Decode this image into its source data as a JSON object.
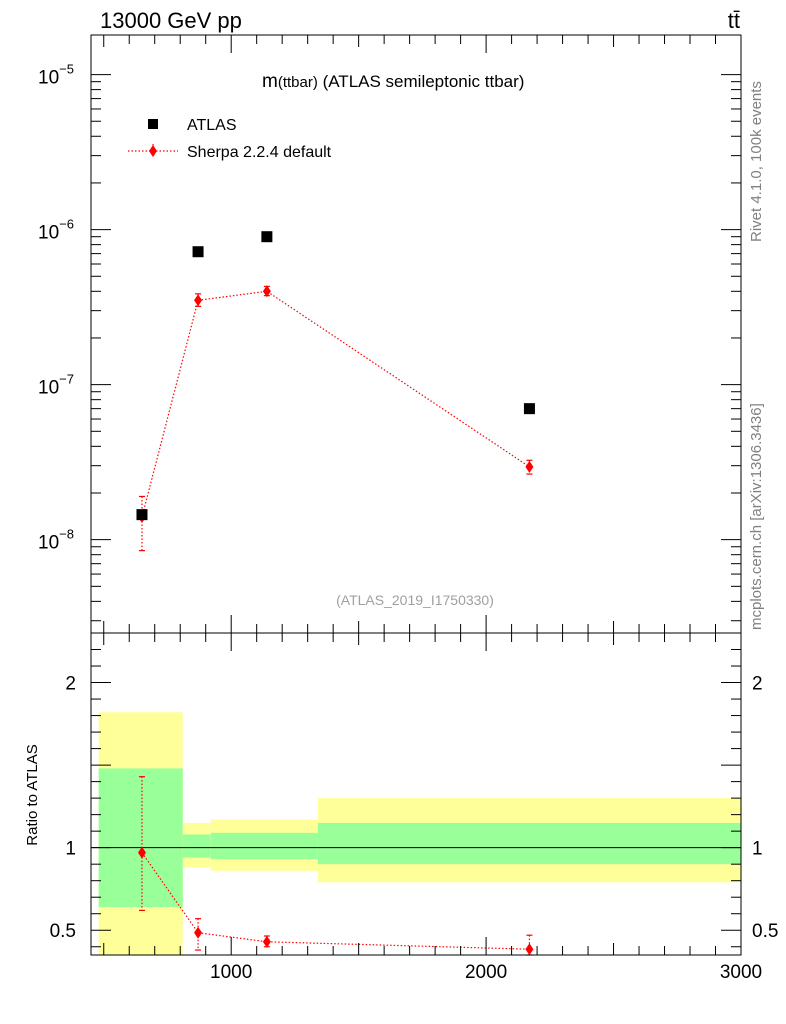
{
  "header": {
    "left": "13000 GeV pp",
    "right": "tt̄"
  },
  "side": {
    "rivet": "Rivet 4.1.0,  100k events",
    "mcplots": "mcplots.cern.ch [arXiv:1306.3436]"
  },
  "colors": {
    "data": "#000000",
    "mc": "#ff0000",
    "band_inner": "#99ff99",
    "band_outer": "#ffff99"
  },
  "chart_data": [
    {
      "type": "scatter",
      "title": "m(ttbar) (ATLAS semileptonic ttbar)",
      "title_main": "m",
      "title_paren": "(ttbar)",
      "title_rest": " (ATLAS semileptonic ttbar)",
      "analysis_label": "(ATLAS_2019_I1750330)",
      "yscale": "log",
      "xlim": [
        450,
        3000
      ],
      "ylim": [
        2.5e-09,
        1.8e-05
      ],
      "yticks": [
        {
          "value": 1e-08,
          "base": "10",
          "exp": "−8"
        },
        {
          "value": 1e-07,
          "base": "10",
          "exp": "−7"
        },
        {
          "value": 1e-06,
          "base": "10",
          "exp": "−6"
        },
        {
          "value": 1e-05,
          "base": "10",
          "exp": "−5"
        }
      ],
      "legend_position": "top-left",
      "series": [
        {
          "name": "ATLAS",
          "marker": "square",
          "x": [
            650,
            870,
            1140,
            2170
          ],
          "y": [
            1.45e-08,
            7.2e-07,
            9e-07,
            7e-08
          ]
        },
        {
          "name": "Sherpa 2.2.4 default",
          "marker": "diamond",
          "line": "dotted",
          "x": [
            650,
            870,
            1140,
            2170
          ],
          "y": [
            1.4e-08,
            3.5e-07,
            4e-07,
            2.95e-08
          ],
          "y_low": [
            8.5e-09,
            3.2e-07,
            3.75e-07,
            2.65e-08
          ],
          "y_high": [
            1.9e-08,
            3.85e-07,
            4.3e-07,
            3.25e-08
          ]
        }
      ]
    },
    {
      "type": "scatter",
      "ylabel": "Ratio to ATLAS",
      "xlim": [
        450,
        3000
      ],
      "ylim": [
        0.35,
        2.3
      ],
      "xticks": [
        1000,
        2000,
        3000
      ],
      "yticks": [
        {
          "value": 0.5,
          "label": "0.5"
        },
        {
          "value": 1,
          "label": "1"
        },
        {
          "value": 2,
          "label": "2"
        }
      ],
      "bands": [
        {
          "x0": 480,
          "x1": 810,
          "inner": [
            0.64,
            1.48
          ],
          "outer": [
            0.35,
            1.82
          ]
        },
        {
          "x0": 810,
          "x1": 920,
          "inner": [
            0.94,
            1.08
          ],
          "outer": [
            0.88,
            1.15
          ]
        },
        {
          "x0": 920,
          "x1": 1340,
          "inner": [
            0.93,
            1.09
          ],
          "outer": [
            0.86,
            1.17
          ]
        },
        {
          "x0": 1340,
          "x1": 3000,
          "inner": [
            0.9,
            1.15
          ],
          "outer": [
            0.79,
            1.3
          ]
        }
      ],
      "reference": 1,
      "series": [
        {
          "name": "Sherpa 2.2.4 default",
          "marker": "diamond",
          "line": "dotted",
          "x": [
            650,
            870,
            1140,
            2170
          ],
          "y": [
            0.97,
            0.485,
            0.43,
            0.385
          ],
          "y_low": [
            0.62,
            0.38,
            0.4,
            0.35
          ],
          "y_high": [
            1.43,
            0.57,
            0.465,
            0.47
          ]
        }
      ]
    }
  ]
}
